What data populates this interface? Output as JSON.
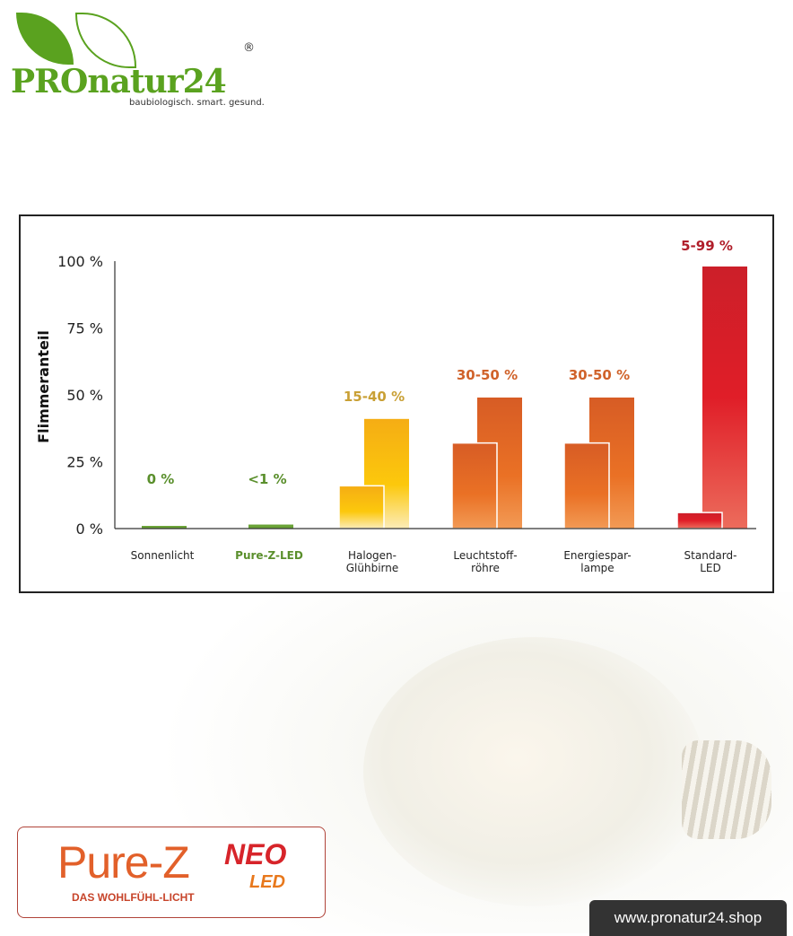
{
  "logo": {
    "name": "PROnatur24",
    "registered": "®",
    "tagline": "baubiologisch. smart. gesund."
  },
  "chart_data": {
    "type": "bar",
    "ylabel": "Flimmeranteil",
    "ylim": [
      0,
      100
    ],
    "yticks": [
      "0 %",
      "25 %",
      "50 %",
      "75 %",
      "100 %"
    ],
    "ytick_values": [
      0,
      25,
      50,
      75,
      100
    ],
    "grid": false,
    "categories": [
      {
        "label": "Sonnenlicht",
        "label2": "",
        "value_label": "0 %",
        "low": 1,
        "high": null,
        "color": "#6aa336",
        "label_color": "#222222",
        "value_color": "#5a8f2c"
      },
      {
        "label": "Pure-Z-LED",
        "label2": "",
        "value_label": "<1 %",
        "low": 1.5,
        "high": null,
        "color": "#6aa336",
        "label_color": "#5a8f2c",
        "value_color": "#5a8f2c"
      },
      {
        "label": "Halogen-",
        "label2": "Glühbirne",
        "value_label": "15-40 %",
        "low": 16,
        "high": 41,
        "color": "#f7b511",
        "label_color": "#222222",
        "value_color": "#c9a035"
      },
      {
        "label": "Leuchtstoff-",
        "label2": "röhre",
        "value_label": "30-50 %",
        "low": 32,
        "high": 49,
        "color": "#e56a25",
        "label_color": "#222222",
        "value_color": "#d0622a"
      },
      {
        "label": "Energiespar-",
        "label2": "lampe",
        "value_label": "30-50 %",
        "low": 32,
        "high": 49,
        "color": "#e56a25",
        "label_color": "#222222",
        "value_color": "#d0622a"
      },
      {
        "label": "Standard-",
        "label2": "LED",
        "value_label": "5-99 %",
        "low": 6,
        "high": 98,
        "color": "#d9202a",
        "label_color": "#222222",
        "value_color": "#b01e2a"
      }
    ]
  },
  "brand": {
    "name": "Pure-Z",
    "neo": "NEO",
    "led": "LED",
    "slogan": "DAS WOHLFÜHL-LICHT"
  },
  "footer": {
    "url": "www.pronatur24.shop"
  }
}
